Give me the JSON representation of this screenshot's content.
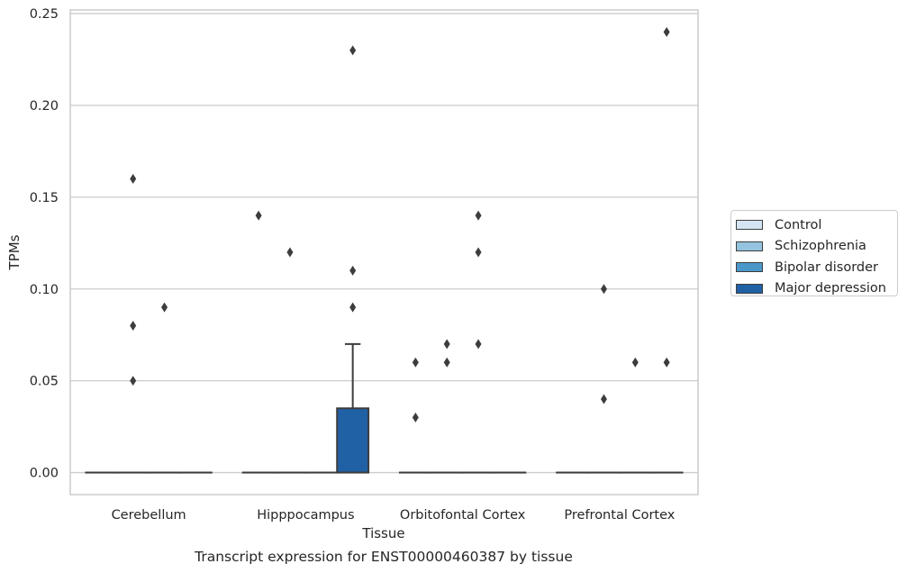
{
  "chart_data": {
    "type": "box",
    "title": "",
    "caption": "Transcript expression for ENST00000460387 by tissue",
    "xlabel": "Tissue",
    "ylabel": "TPMs",
    "ylim": [
      -0.012,
      0.252
    ],
    "yticks": [
      0.0,
      0.05,
      0.1,
      0.15,
      0.2,
      0.25
    ],
    "ytick_labels": [
      "0.00",
      "0.05",
      "0.10",
      "0.15",
      "0.20",
      "0.25"
    ],
    "categories": [
      "Cerebellum",
      "Hipppocampus",
      "Orbitofontal Cortex",
      "Prefrontal Cortex"
    ],
    "grid": "horizontal",
    "legend_position": "right",
    "series": [
      {
        "name": "Control",
        "color": "#d4e4f3"
      },
      {
        "name": "Schizophrenia",
        "color": "#94c4df"
      },
      {
        "name": "Bipolar disorder",
        "color": "#4a98c9"
      },
      {
        "name": "Major depression",
        "color": "#2060a5"
      }
    ],
    "boxes": [
      {
        "category": 0,
        "series": 0,
        "q1": 0,
        "median": 0,
        "q3": 0,
        "whisker_low": 0,
        "whisker_high": 0,
        "outliers": []
      },
      {
        "category": 0,
        "series": 1,
        "q1": 0,
        "median": 0,
        "q3": 0,
        "whisker_low": 0,
        "whisker_high": 0,
        "outliers": [
          0.05,
          0.08,
          0.16
        ]
      },
      {
        "category": 0,
        "series": 2,
        "q1": 0,
        "median": 0,
        "q3": 0,
        "whisker_low": 0,
        "whisker_high": 0,
        "outliers": [
          0.09
        ]
      },
      {
        "category": 0,
        "series": 3,
        "q1": 0,
        "median": 0,
        "q3": 0,
        "whisker_low": 0,
        "whisker_high": 0,
        "outliers": []
      },
      {
        "category": 1,
        "series": 0,
        "q1": 0,
        "median": 0,
        "q3": 0,
        "whisker_low": 0,
        "whisker_high": 0,
        "outliers": [
          0.14
        ]
      },
      {
        "category": 1,
        "series": 1,
        "q1": 0,
        "median": 0,
        "q3": 0,
        "whisker_low": 0,
        "whisker_high": 0,
        "outliers": [
          0.12
        ]
      },
      {
        "category": 1,
        "series": 2,
        "q1": 0,
        "median": 0,
        "q3": 0,
        "whisker_low": 0,
        "whisker_high": 0,
        "outliers": []
      },
      {
        "category": 1,
        "series": 3,
        "q1": 0,
        "median": 0,
        "q3": 0.035,
        "whisker_low": 0,
        "whisker_high": 0.07,
        "outliers": [
          0.09,
          0.11,
          0.23
        ]
      },
      {
        "category": 2,
        "series": 0,
        "q1": 0,
        "median": 0,
        "q3": 0,
        "whisker_low": 0,
        "whisker_high": 0,
        "outliers": [
          0.03,
          0.06
        ]
      },
      {
        "category": 2,
        "series": 1,
        "q1": 0,
        "median": 0,
        "q3": 0,
        "whisker_low": 0,
        "whisker_high": 0,
        "outliers": [
          0.06,
          0.07
        ]
      },
      {
        "category": 2,
        "series": 2,
        "q1": 0,
        "median": 0,
        "q3": 0,
        "whisker_low": 0,
        "whisker_high": 0,
        "outliers": [
          0.07,
          0.12,
          0.14
        ]
      },
      {
        "category": 2,
        "series": 3,
        "q1": 0,
        "median": 0,
        "q3": 0,
        "whisker_low": 0,
        "whisker_high": 0,
        "outliers": []
      },
      {
        "category": 3,
        "series": 0,
        "q1": 0,
        "median": 0,
        "q3": 0,
        "whisker_low": 0,
        "whisker_high": 0,
        "outliers": []
      },
      {
        "category": 3,
        "series": 1,
        "q1": 0,
        "median": 0,
        "q3": 0,
        "whisker_low": 0,
        "whisker_high": 0,
        "outliers": [
          0.04,
          0.1
        ]
      },
      {
        "category": 3,
        "series": 2,
        "q1": 0,
        "median": 0,
        "q3": 0,
        "whisker_low": 0,
        "whisker_high": 0,
        "outliers": [
          0.06
        ]
      },
      {
        "category": 3,
        "series": 3,
        "q1": 0,
        "median": 0,
        "q3": 0,
        "whisker_low": 0,
        "whisker_high": 0,
        "outliers": [
          0.06,
          0.24
        ]
      }
    ]
  }
}
